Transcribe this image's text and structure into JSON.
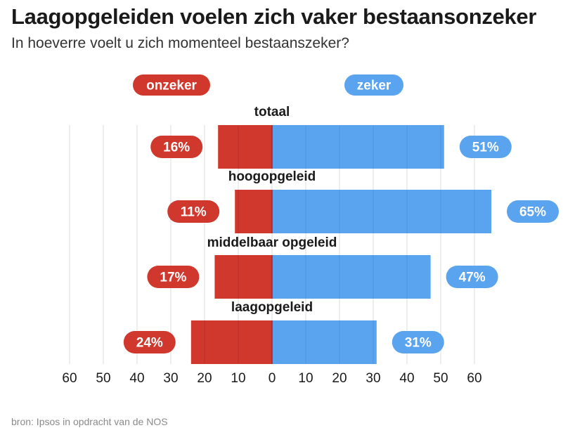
{
  "title": "Laagopgeleiden voelen zich vaker bestaansonzeker",
  "subtitle": "In hoeverre voelt u zich momenteel bestaanszeker?",
  "source": "bron: Ipsos in opdracht van de NOS",
  "colors": {
    "onzeker": "#d1382d",
    "zeker": "#5aa3ef",
    "grid": "#dddddd",
    "divider": "#a9281f"
  },
  "chart_data": {
    "type": "bar",
    "orientation": "horizontal-diverging",
    "legend": {
      "left": "onzeker",
      "right": "zeker",
      "placement": "top"
    },
    "categories": [
      "totaal",
      "hoogopgeleid",
      "middelbaar opgeleid",
      "laagopgeleid"
    ],
    "series": [
      {
        "name": "onzeker",
        "values": [
          16,
          11,
          17,
          24
        ],
        "labels": [
          "16%",
          "11%",
          "17%",
          "24%"
        ],
        "direction": "left"
      },
      {
        "name": "zeker",
        "values": [
          51,
          65,
          47,
          31
        ],
        "labels": [
          "51%",
          "65%",
          "47%",
          "31%"
        ],
        "direction": "right"
      }
    ],
    "xlim": [
      -60,
      60
    ],
    "ticks": [
      "60",
      "50",
      "40",
      "30",
      "20",
      "10",
      "0",
      "10",
      "20",
      "30",
      "40",
      "50",
      "60"
    ],
    "grid": true
  }
}
